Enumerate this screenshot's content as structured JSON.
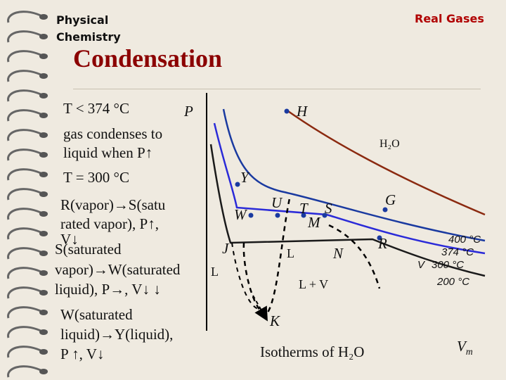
{
  "header": {
    "subject_line1": "Physical",
    "subject_line2": "Chemistry",
    "section": "Real Gases"
  },
  "title": "Condensation",
  "notes": [
    "T < 374 °C",
    "gas condenses to",
    "liquid when P↑",
    "T = 300 °C",
    "R(vapor)→S(satu",
    "rated vapor), P↑,",
    "V↓",
    "S(saturated",
    "vapor)→W(saturated",
    "liquid), P→, V↓ ↓",
    "W(saturated",
    "liquid)→Y(liquid),",
    "P ↑, V↓"
  ],
  "diagram": {
    "y_axis_label": "P",
    "x_axis_label": "V",
    "x_axis_sub": "m",
    "substance": "H₂O",
    "caption": "Isotherms of H₂O",
    "points": {
      "H": "H",
      "Y": "Y",
      "W": "W",
      "U": "U",
      "T": "T",
      "S": "S",
      "M": "M",
      "G": "G",
      "J": "J",
      "L": "L",
      "N": "N",
      "R": "R",
      "K": "K"
    },
    "inner_L": "L",
    "region_label": "L + V",
    "side_label_V": "V",
    "isotherm_labels": [
      "400 °C",
      "374 °C",
      "300 °C",
      "200 °C"
    ],
    "colors": {
      "c400": "#8b2a10",
      "c374": "#1a3aa0",
      "c300": "#2a2ad8",
      "c200": "#1a1a1a",
      "point": "#1a3aa0"
    }
  }
}
